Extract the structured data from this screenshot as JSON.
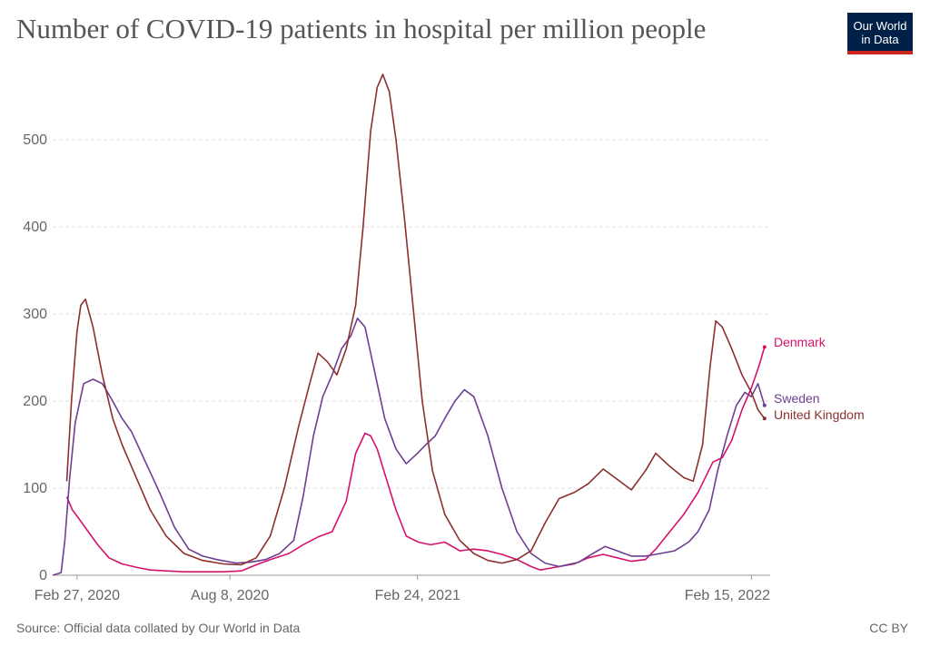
{
  "header": {
    "title": "Number of COVID-19 patients in hospital per million people",
    "logo_line1": "Our World",
    "logo_line2": "in Data"
  },
  "footer": {
    "source": "Source: Official data collated by Our World in Data",
    "license": "CC BY"
  },
  "chart_data": {
    "type": "line",
    "title": "Number of COVID-19 patients in hospital per million people",
    "xlabel": "",
    "ylabel": "",
    "x_range": [
      "2020-02-01",
      "2022-03-07"
    ],
    "ylim": [
      0,
      600
    ],
    "y_ticks": [
      0,
      100,
      200,
      300,
      400,
      500
    ],
    "x_tick_labels": [
      {
        "date": "2020-02-27",
        "label": "Feb 27, 2020"
      },
      {
        "date": "2020-08-08",
        "label": "Aug 8, 2020"
      },
      {
        "date": "2021-02-24",
        "label": "Feb 24, 2021"
      },
      {
        "date": "2022-02-15",
        "label": "Feb 15, 2022"
      }
    ],
    "grid": "horizontal dashed",
    "legend": "end-of-line labels, right",
    "series": [
      {
        "name": "Denmark",
        "color": "#d6116b",
        "points": [
          [
            "2020-02-16",
            90
          ],
          [
            "2020-02-22",
            75
          ],
          [
            "2020-02-29",
            65
          ],
          [
            "2020-03-10",
            50
          ],
          [
            "2020-03-20",
            35
          ],
          [
            "2020-04-01",
            20
          ],
          [
            "2020-04-15",
            13
          ],
          [
            "2020-05-01",
            9
          ],
          [
            "2020-05-15",
            6
          ],
          [
            "2020-06-01",
            5
          ],
          [
            "2020-06-20",
            4
          ],
          [
            "2020-07-10",
            4
          ],
          [
            "2020-08-01",
            4
          ],
          [
            "2020-08-20",
            5
          ],
          [
            "2020-09-05",
            12
          ],
          [
            "2020-09-20",
            18
          ],
          [
            "2020-10-10",
            25
          ],
          [
            "2020-10-25",
            35
          ],
          [
            "2020-11-10",
            44
          ],
          [
            "2020-11-25",
            50
          ],
          [
            "2020-12-10",
            85
          ],
          [
            "2020-12-20",
            140
          ],
          [
            "2020-12-30",
            163
          ],
          [
            "2021-01-05",
            160
          ],
          [
            "2021-01-12",
            145
          ],
          [
            "2021-01-22",
            110
          ],
          [
            "2021-02-01",
            75
          ],
          [
            "2021-02-12",
            45
          ],
          [
            "2021-02-25",
            38
          ],
          [
            "2021-03-10",
            35
          ],
          [
            "2021-03-25",
            38
          ],
          [
            "2021-04-10",
            28
          ],
          [
            "2021-04-25",
            30
          ],
          [
            "2021-05-10",
            28
          ],
          [
            "2021-05-25",
            24
          ],
          [
            "2021-06-10",
            18
          ],
          [
            "2021-06-25",
            10
          ],
          [
            "2021-07-05",
            6
          ],
          [
            "2021-07-20",
            9
          ],
          [
            "2021-08-10",
            13
          ],
          [
            "2021-08-25",
            20
          ],
          [
            "2021-09-10",
            24
          ],
          [
            "2021-09-25",
            20
          ],
          [
            "2021-10-10",
            16
          ],
          [
            "2021-10-25",
            18
          ],
          [
            "2021-11-05",
            30
          ],
          [
            "2021-11-20",
            50
          ],
          [
            "2021-12-05",
            70
          ],
          [
            "2021-12-20",
            95
          ],
          [
            "2022-01-05",
            130
          ],
          [
            "2022-01-15",
            135
          ],
          [
            "2022-01-25",
            155
          ],
          [
            "2022-02-05",
            190
          ],
          [
            "2022-02-15",
            215
          ],
          [
            "2022-02-23",
            240
          ],
          [
            "2022-03-01",
            262
          ]
        ]
      },
      {
        "name": "Sweden",
        "color": "#6d3e91",
        "points": [
          [
            "2020-02-01",
            0
          ],
          [
            "2020-02-10",
            3
          ],
          [
            "2020-02-14",
            40
          ],
          [
            "2020-02-19",
            110
          ],
          [
            "2020-02-25",
            175
          ],
          [
            "2020-03-05",
            220
          ],
          [
            "2020-03-15",
            225
          ],
          [
            "2020-03-25",
            220
          ],
          [
            "2020-04-05",
            200
          ],
          [
            "2020-04-15",
            180
          ],
          [
            "2020-04-25",
            165
          ],
          [
            "2020-05-10",
            130
          ],
          [
            "2020-05-25",
            95
          ],
          [
            "2020-06-10",
            55
          ],
          [
            "2020-06-25",
            30
          ],
          [
            "2020-07-10",
            22
          ],
          [
            "2020-07-25",
            18
          ],
          [
            "2020-08-15",
            14
          ],
          [
            "2020-08-30",
            15
          ],
          [
            "2020-09-15",
            18
          ],
          [
            "2020-09-30",
            25
          ],
          [
            "2020-10-15",
            40
          ],
          [
            "2020-10-25",
            90
          ],
          [
            "2020-11-05",
            160
          ],
          [
            "2020-11-15",
            205
          ],
          [
            "2020-11-25",
            230
          ],
          [
            "2020-12-05",
            260
          ],
          [
            "2020-12-15",
            275
          ],
          [
            "2020-12-22",
            295
          ],
          [
            "2020-12-30",
            285
          ],
          [
            "2021-01-08",
            240
          ],
          [
            "2021-01-20",
            180
          ],
          [
            "2021-02-01",
            145
          ],
          [
            "2021-02-12",
            128
          ],
          [
            "2021-02-24",
            140
          ],
          [
            "2021-03-05",
            150
          ],
          [
            "2021-03-15",
            160
          ],
          [
            "2021-03-25",
            180
          ],
          [
            "2021-04-05",
            200
          ],
          [
            "2021-04-15",
            213
          ],
          [
            "2021-04-25",
            205
          ],
          [
            "2021-05-10",
            160
          ],
          [
            "2021-05-25",
            100
          ],
          [
            "2021-06-10",
            50
          ],
          [
            "2021-06-25",
            25
          ],
          [
            "2021-07-10",
            14
          ],
          [
            "2021-07-25",
            10
          ],
          [
            "2021-08-15",
            15
          ],
          [
            "2021-08-30",
            25
          ],
          [
            "2021-09-12",
            33
          ],
          [
            "2021-09-25",
            28
          ],
          [
            "2021-10-10",
            22
          ],
          [
            "2021-10-25",
            22
          ],
          [
            "2021-11-10",
            25
          ],
          [
            "2021-11-25",
            28
          ],
          [
            "2021-12-10",
            38
          ],
          [
            "2021-12-20",
            50
          ],
          [
            "2022-01-01",
            75
          ],
          [
            "2022-01-10",
            120
          ],
          [
            "2022-01-20",
            160
          ],
          [
            "2022-01-30",
            195
          ],
          [
            "2022-02-08",
            210
          ],
          [
            "2022-02-15",
            205
          ],
          [
            "2022-02-22",
            220
          ],
          [
            "2022-03-01",
            195
          ]
        ]
      },
      {
        "name": "United Kingdom",
        "color": "#8c2f2f",
        "points": [
          [
            "2020-02-16",
            108
          ],
          [
            "2020-02-21",
            200
          ],
          [
            "2020-02-27",
            280
          ],
          [
            "2020-03-02",
            310
          ],
          [
            "2020-03-07",
            317
          ],
          [
            "2020-03-15",
            285
          ],
          [
            "2020-03-25",
            230
          ],
          [
            "2020-04-05",
            180
          ],
          [
            "2020-04-15",
            150
          ],
          [
            "2020-05-01",
            110
          ],
          [
            "2020-05-15",
            75
          ],
          [
            "2020-06-01",
            45
          ],
          [
            "2020-06-20",
            25
          ],
          [
            "2020-07-10",
            17
          ],
          [
            "2020-08-01",
            13
          ],
          [
            "2020-08-20",
            12
          ],
          [
            "2020-09-05",
            20
          ],
          [
            "2020-09-20",
            45
          ],
          [
            "2020-10-05",
            100
          ],
          [
            "2020-10-20",
            170
          ],
          [
            "2020-11-01",
            220
          ],
          [
            "2020-11-10",
            255
          ],
          [
            "2020-11-20",
            245
          ],
          [
            "2020-11-30",
            230
          ],
          [
            "2020-12-10",
            260
          ],
          [
            "2020-12-20",
            310
          ],
          [
            "2020-12-28",
            400
          ],
          [
            "2021-01-05",
            510
          ],
          [
            "2021-01-12",
            560
          ],
          [
            "2021-01-18",
            575
          ],
          [
            "2021-01-25",
            555
          ],
          [
            "2021-02-01",
            500
          ],
          [
            "2021-02-10",
            410
          ],
          [
            "2021-02-20",
            300
          ],
          [
            "2021-03-01",
            200
          ],
          [
            "2021-03-12",
            120
          ],
          [
            "2021-03-25",
            70
          ],
          [
            "2021-04-10",
            40
          ],
          [
            "2021-04-25",
            25
          ],
          [
            "2021-05-10",
            17
          ],
          [
            "2021-05-25",
            14
          ],
          [
            "2021-06-10",
            18
          ],
          [
            "2021-06-25",
            28
          ],
          [
            "2021-07-10",
            60
          ],
          [
            "2021-07-25",
            88
          ],
          [
            "2021-08-10",
            95
          ],
          [
            "2021-08-25",
            105
          ],
          [
            "2021-09-10",
            122
          ],
          [
            "2021-09-25",
            110
          ],
          [
            "2021-10-10",
            98
          ],
          [
            "2021-10-25",
            120
          ],
          [
            "2021-11-05",
            140
          ],
          [
            "2021-11-20",
            125
          ],
          [
            "2021-12-05",
            112
          ],
          [
            "2021-12-15",
            108
          ],
          [
            "2021-12-25",
            150
          ],
          [
            "2022-01-02",
            240
          ],
          [
            "2022-01-08",
            292
          ],
          [
            "2022-01-15",
            285
          ],
          [
            "2022-01-25",
            260
          ],
          [
            "2022-02-05",
            230
          ],
          [
            "2022-02-15",
            210
          ],
          [
            "2022-02-22",
            190
          ],
          [
            "2022-03-01",
            180
          ]
        ]
      }
    ]
  }
}
